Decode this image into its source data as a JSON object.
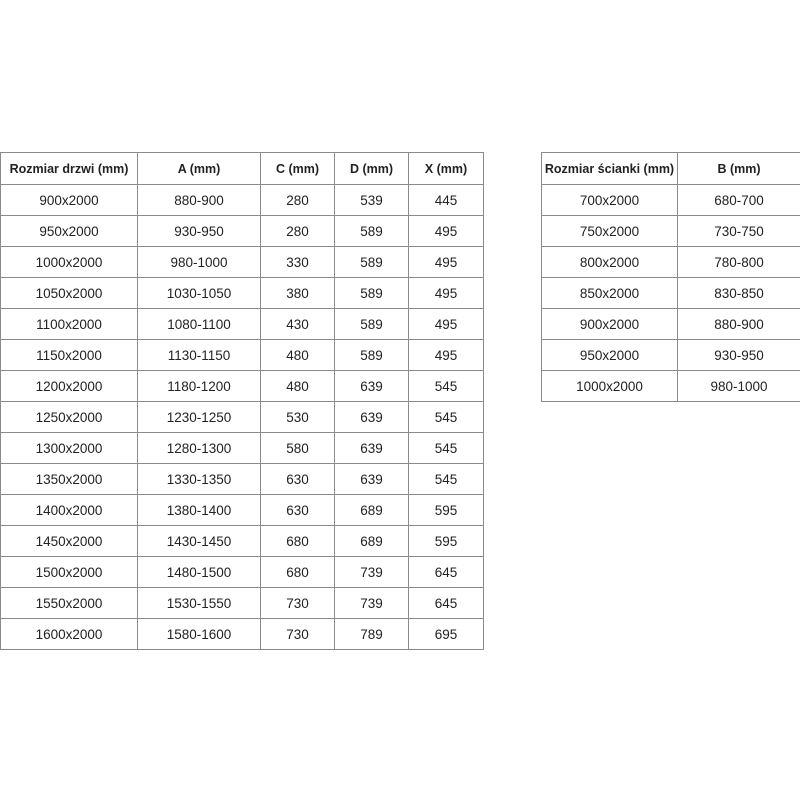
{
  "doors_table": {
    "headers": [
      "Rozmiar drzwi (mm)",
      "A (mm)",
      "C (mm)",
      "D (mm)",
      "X (mm)"
    ],
    "rows": [
      [
        "900x2000",
        "880-900",
        "280",
        "539",
        "445"
      ],
      [
        "950x2000",
        "930-950",
        "280",
        "589",
        "495"
      ],
      [
        "1000x2000",
        "980-1000",
        "330",
        "589",
        "495"
      ],
      [
        "1050x2000",
        "1030-1050",
        "380",
        "589",
        "495"
      ],
      [
        "1100x2000",
        "1080-1100",
        "430",
        "589",
        "495"
      ],
      [
        "1150x2000",
        "1130-1150",
        "480",
        "589",
        "495"
      ],
      [
        "1200x2000",
        "1180-1200",
        "480",
        "639",
        "545"
      ],
      [
        "1250x2000",
        "1230-1250",
        "530",
        "639",
        "545"
      ],
      [
        "1300x2000",
        "1280-1300",
        "580",
        "639",
        "545"
      ],
      [
        "1350x2000",
        "1330-1350",
        "630",
        "639",
        "545"
      ],
      [
        "1400x2000",
        "1380-1400",
        "630",
        "689",
        "595"
      ],
      [
        "1450x2000",
        "1430-1450",
        "680",
        "689",
        "595"
      ],
      [
        "1500x2000",
        "1480-1500",
        "680",
        "739",
        "645"
      ],
      [
        "1550x2000",
        "1530-1550",
        "730",
        "739",
        "645"
      ],
      [
        "1600x2000",
        "1580-1600",
        "730",
        "789",
        "695"
      ]
    ]
  },
  "walls_table": {
    "headers": [
      "Rozmiar ścianki (mm)",
      "B (mm)"
    ],
    "rows": [
      [
        "700x2000",
        "680-700"
      ],
      [
        "750x2000",
        "730-750"
      ],
      [
        "800x2000",
        "780-800"
      ],
      [
        "850x2000",
        "830-850"
      ],
      [
        "900x2000",
        "880-900"
      ],
      [
        "950x2000",
        "930-950"
      ],
      [
        "1000x2000",
        "980-1000"
      ]
    ]
  }
}
